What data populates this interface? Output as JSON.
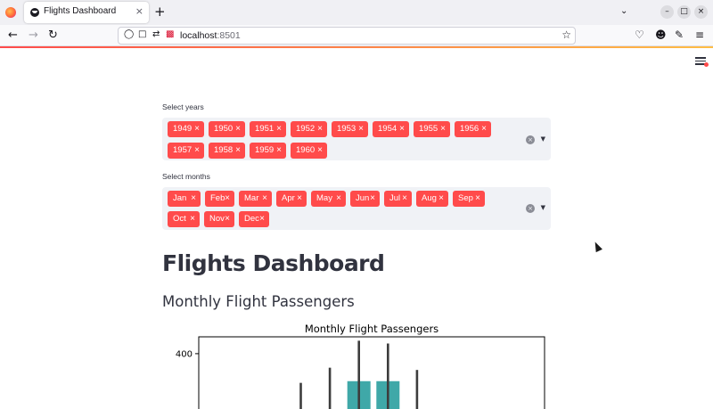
{
  "browser": {
    "tab_title": "Flights Dashboard",
    "tab_close": "×",
    "new_tab": "+",
    "url_host": "localhost",
    "url_port": ":8501"
  },
  "filters": {
    "years_label": "Select years",
    "years": [
      "1949",
      "1950",
      "1951",
      "1952",
      "1953",
      "1954",
      "1955",
      "1956",
      "1957",
      "1958",
      "1959",
      "1960"
    ],
    "months_label": "Select months",
    "months": [
      "Jan",
      "Feb",
      "Mar",
      "Apr",
      "May",
      "Jun",
      "Jul",
      "Aug",
      "Sep",
      "Oct",
      "Nov",
      "Dec"
    ],
    "chip_remove": "×"
  },
  "main": {
    "title": "Flights Dashboard",
    "subtitle": "Monthly Flight Passengers"
  },
  "chart_data": {
    "type": "bar",
    "title": "Monthly Flight Passengers",
    "yticks": [
      400
    ],
    "ylim": [
      330,
      430
    ],
    "bar_color": "#3fa8a8",
    "series": [
      {
        "x_index": 4,
        "mean": 300,
        "error_top": 348
      },
      {
        "x_index": 5,
        "mean": 300,
        "error_top": 375
      },
      {
        "x_index": 6,
        "mean": 351,
        "error_top": 423
      },
      {
        "x_index": 7,
        "mean": 351,
        "error_top": 418
      },
      {
        "x_index": 8,
        "mean": 300,
        "error_top": 371
      }
    ]
  }
}
